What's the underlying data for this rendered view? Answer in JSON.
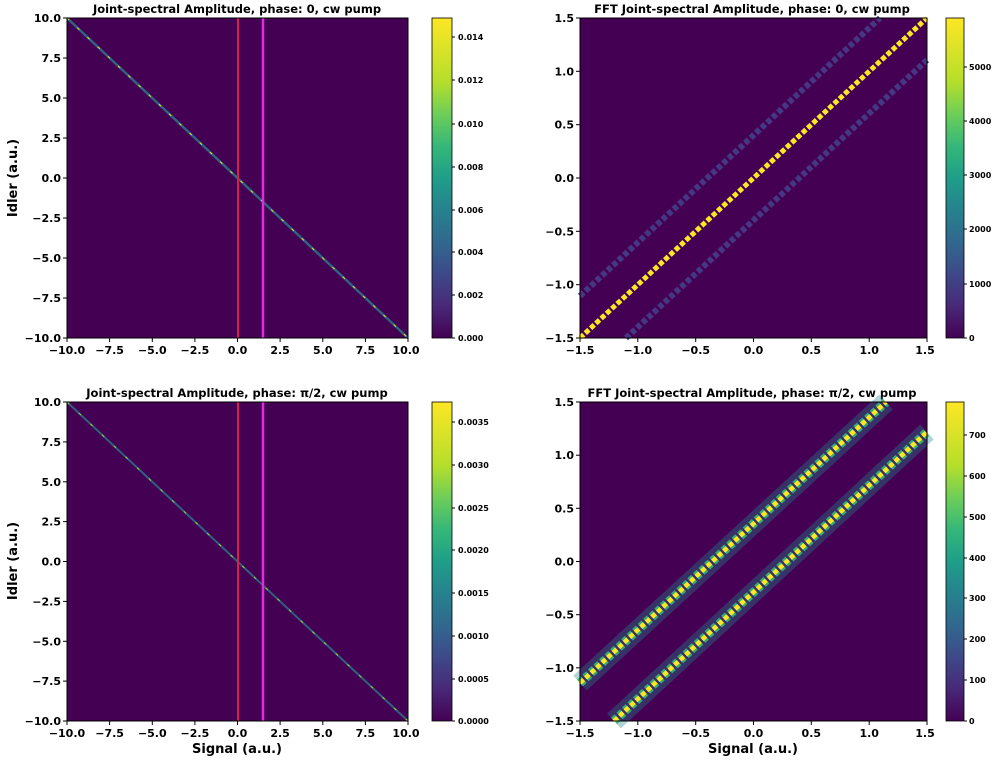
{
  "colors": {
    "viridis_dark": "#440154",
    "viridis_bright": "#fde725",
    "vline_signal_zero": "#d6204a",
    "vline_signal_offset": "#e02cde"
  },
  "chart_data": [
    {
      "type": "heatmap",
      "title": "Joint-spectral Amplitude, phase: 0, cw pump",
      "xlabel": "",
      "ylabel": "Idler (a.u.)",
      "xlim": [
        -10.0,
        10.0
      ],
      "ylim": [
        -10.0,
        10.0
      ],
      "xticks": [
        "−10.0",
        "−7.5",
        "−5.0",
        "−2.5",
        "0.0",
        "2.5",
        "5.0",
        "7.5",
        "10.0"
      ],
      "yticks": [
        "10.0",
        "7.5",
        "5.0",
        "2.5",
        "0.0",
        "−2.5",
        "−5.0",
        "−7.5",
        "−10.0"
      ],
      "colorbar": {
        "min": 0,
        "max": 0.015,
        "ticks": [
          "0.014",
          "0.012",
          "0.010",
          "0.008",
          "0.006",
          "0.004",
          "0.002",
          "0.000"
        ]
      },
      "structure": {
        "kind": "anti-diagonal",
        "slope": -1,
        "intercept": 0
      },
      "vlines": [
        0.0,
        1.5
      ]
    },
    {
      "type": "heatmap",
      "title": "FFT Joint-spectral Amplitude, phase: 0, cw pump",
      "xlabel": "",
      "ylabel": "",
      "xlim": [
        -1.5,
        1.5
      ],
      "ylim": [
        -1.5,
        1.5
      ],
      "xticks": [
        "−1.5",
        "−1.0",
        "−0.5",
        "0.0",
        "0.5",
        "1.0",
        "1.5"
      ],
      "yticks": [
        "1.5",
        "1.0",
        "0.5",
        "0.0",
        "−0.5",
        "−1.0",
        "−1.5"
      ],
      "colorbar": {
        "min": 0,
        "max": 5900,
        "ticks": [
          "5000",
          "4000",
          "3000",
          "2000",
          "1000",
          "0"
        ]
      },
      "structure": {
        "kind": "diagonal-bands",
        "bands": [
          {
            "offset": 0,
            "level": 1.0
          },
          {
            "offset": 0.33,
            "level": 0.16
          },
          {
            "offset": -0.33,
            "level": 0.16
          }
        ]
      }
    },
    {
      "type": "heatmap",
      "title": "Joint-spectral Amplitude, phase: π/2, cw pump",
      "xlabel": "Signal (a.u.)",
      "ylabel": "Idler (a.u.)",
      "xlim": [
        -10.0,
        10.0
      ],
      "ylim": [
        -10.0,
        10.0
      ],
      "xticks": [
        "−10.0",
        "−7.5",
        "−5.0",
        "−2.5",
        "0.0",
        "2.5",
        "5.0",
        "7.5",
        "10.0"
      ],
      "yticks": [
        "10.0",
        "7.5",
        "5.0",
        "2.5",
        "0.0",
        "−2.5",
        "−5.0",
        "−7.5",
        "−10.0"
      ],
      "colorbar": {
        "min": 0,
        "max": 0.0037,
        "ticks": [
          "0.0035",
          "0.0030",
          "0.0025",
          "0.0020",
          "0.0015",
          "0.0010",
          "0.0005",
          "0.0000"
        ]
      },
      "structure": {
        "kind": "anti-diagonal",
        "slope": -1,
        "intercept": 0
      },
      "vlines": [
        0.0,
        1.5
      ]
    },
    {
      "type": "heatmap",
      "title": "FFT Joint-spectral Amplitude, phase: π/2, cw pump",
      "xlabel": "Signal (a.u.)",
      "ylabel": "",
      "xlim": [
        -1.5,
        1.5
      ],
      "ylim": [
        -1.5,
        1.5
      ],
      "xticks": [
        "−1.5",
        "−1.0",
        "−0.5",
        "0.0",
        "0.5",
        "1.0",
        "1.5"
      ],
      "yticks": [
        "1.5",
        "1.0",
        "0.5",
        "0.0",
        "−0.5",
        "−1.0",
        "−1.5"
      ],
      "colorbar": {
        "min": 0,
        "max": 780,
        "ticks": [
          "700",
          "600",
          "500",
          "400",
          "300",
          "200",
          "100",
          "0"
        ]
      },
      "structure": {
        "kind": "diagonal-bands",
        "bands": [
          {
            "offset": 0.33,
            "level": 1.0
          },
          {
            "offset": -0.33,
            "level": 1.0
          }
        ]
      }
    }
  ]
}
